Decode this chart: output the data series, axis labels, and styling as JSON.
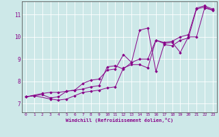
{
  "xlabel": "Windchill (Refroidissement éolien,°C)",
  "background_color": "#cde8e8",
  "line_color": "#880088",
  "xlim": [
    -0.5,
    23.5
  ],
  "ylim": [
    6.6,
    11.6
  ],
  "yticks": [
    7,
    8,
    9,
    10,
    11
  ],
  "xticks": [
    0,
    1,
    2,
    3,
    4,
    5,
    6,
    7,
    8,
    9,
    10,
    11,
    12,
    13,
    14,
    15,
    16,
    17,
    18,
    19,
    20,
    21,
    22,
    23
  ],
  "series": [
    [
      [
        0,
        7.3
      ],
      [
        1,
        7.35
      ],
      [
        2,
        7.4
      ],
      [
        3,
        7.25
      ],
      [
        4,
        7.3
      ],
      [
        5,
        7.55
      ],
      [
        6,
        7.6
      ],
      [
        7,
        7.65
      ],
      [
        8,
        7.75
      ],
      [
        9,
        7.8
      ],
      [
        10,
        8.65
      ],
      [
        11,
        8.7
      ],
      [
        12,
        8.55
      ],
      [
        13,
        8.85
      ],
      [
        14,
        10.3
      ],
      [
        15,
        10.4
      ],
      [
        16,
        8.45
      ],
      [
        17,
        9.65
      ],
      [
        18,
        9.6
      ],
      [
        19,
        9.85
      ],
      [
        20,
        9.95
      ],
      [
        21,
        11.25
      ],
      [
        22,
        11.35
      ],
      [
        23,
        11.2
      ]
    ],
    [
      [
        0,
        7.3
      ],
      [
        1,
        7.35
      ],
      [
        3,
        7.2
      ],
      [
        4,
        7.15
      ],
      [
        5,
        7.2
      ],
      [
        6,
        7.35
      ],
      [
        7,
        7.5
      ],
      [
        8,
        7.55
      ],
      [
        9,
        7.6
      ],
      [
        10,
        7.7
      ],
      [
        11,
        7.75
      ],
      [
        12,
        8.6
      ],
      [
        13,
        8.75
      ],
      [
        14,
        8.75
      ],
      [
        15,
        8.6
      ],
      [
        16,
        9.85
      ],
      [
        17,
        9.7
      ],
      [
        18,
        9.75
      ],
      [
        19,
        9.3
      ],
      [
        20,
        10.0
      ],
      [
        21,
        10.0
      ],
      [
        22,
        11.3
      ],
      [
        23,
        11.2
      ]
    ],
    [
      [
        0,
        7.3
      ],
      [
        2,
        7.45
      ],
      [
        3,
        7.5
      ],
      [
        4,
        7.5
      ],
      [
        5,
        7.55
      ],
      [
        6,
        7.6
      ],
      [
        7,
        7.9
      ],
      [
        8,
        8.05
      ],
      [
        9,
        8.1
      ],
      [
        10,
        8.5
      ],
      [
        11,
        8.55
      ],
      [
        12,
        9.2
      ],
      [
        13,
        8.85
      ],
      [
        14,
        9.0
      ],
      [
        15,
        9.0
      ],
      [
        16,
        9.85
      ],
      [
        17,
        9.75
      ],
      [
        18,
        9.8
      ],
      [
        19,
        10.0
      ],
      [
        20,
        10.1
      ],
      [
        21,
        11.3
      ],
      [
        22,
        11.4
      ],
      [
        23,
        11.25
      ]
    ]
  ]
}
